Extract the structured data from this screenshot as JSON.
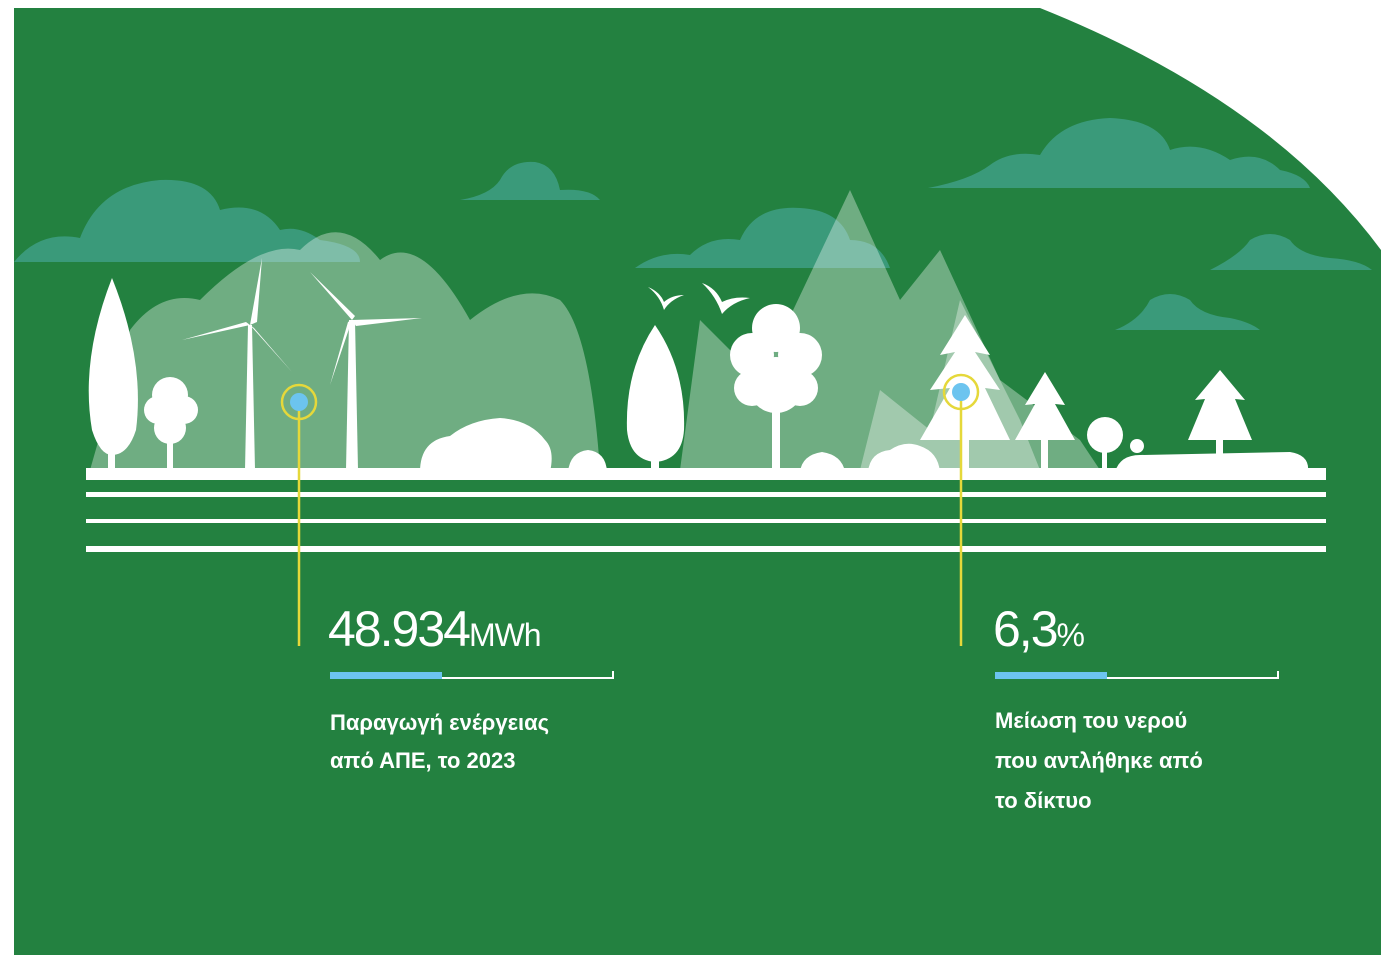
{
  "stats": [
    {
      "value": "48.934",
      "unit": "MWh",
      "label_lines": [
        "Παραγωγή ενέργειας",
        "από ΑΠΕ, το 2023"
      ]
    },
    {
      "value": "6,3",
      "unit": "%",
      "label_lines": [
        "Μείωση του νερού",
        "που αντλήθηκε από",
        "το δίκτυο"
      ]
    }
  ]
}
